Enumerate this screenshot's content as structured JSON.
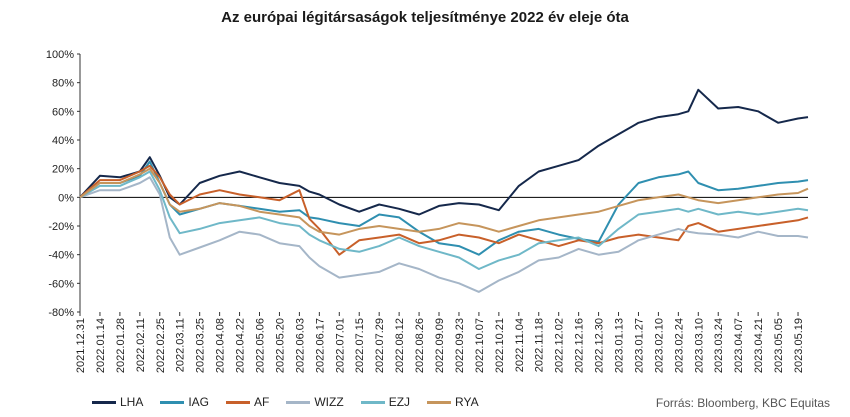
{
  "chart_data": {
    "type": "line",
    "title": "Az európai légitársaságok teljesítménye  2022 év eleje óta",
    "source": "Forrás: Bloomberg,  KBC Equitas",
    "ylim": [
      -80,
      100
    ],
    "yticks": [
      -80,
      -60,
      -40,
      -20,
      0,
      20,
      40,
      60,
      80,
      100
    ],
    "ytick_labels": [
      "-80%",
      "-60%",
      "-40%",
      "-20%",
      "0%",
      "20%",
      "40%",
      "60%",
      "80%",
      "100%"
    ],
    "x_tick_labels": [
      "2021.12.31",
      "2022.01.14",
      "2022.01.28",
      "2022.02.11",
      "2022.02.25",
      "2022.03.11",
      "2022.03.25",
      "2022.04.08",
      "2022.04.22",
      "2022.05.06",
      "2022.05.20",
      "2022.06.03",
      "2022.06.17",
      "2022.07.01",
      "2022.07.15",
      "2022.07.29",
      "2022.08.12",
      "2022.08.26",
      "2022.09.09",
      "2022.09.23",
      "2022.10.07",
      "2022.10.21",
      "2022.11.04",
      "2022.11.18",
      "2022.12.02",
      "2022.12.16",
      "2022.12.30",
      "2023.01.13",
      "2023.01.27",
      "2023.02.10",
      "2023.02.24",
      "2023.03.10",
      "2023.03.24",
      "2023.04.07",
      "2023.04.21",
      "2023.05.05",
      "2023.05.19"
    ],
    "x_tick_period_days": 14,
    "x": [
      "2021.12.31",
      "2022.01.14",
      "2022.01.28",
      "2022.02.11",
      "2022.02.18",
      "2022.02.25",
      "2022.03.04",
      "2022.03.11",
      "2022.03.25",
      "2022.04.08",
      "2022.04.22",
      "2022.05.06",
      "2022.05.20",
      "2022.06.03",
      "2022.06.10",
      "2022.06.17",
      "2022.07.01",
      "2022.07.15",
      "2022.07.29",
      "2022.08.12",
      "2022.08.26",
      "2022.09.09",
      "2022.09.23",
      "2022.10.07",
      "2022.10.21",
      "2022.11.04",
      "2022.11.18",
      "2022.12.02",
      "2022.12.16",
      "2022.12.30",
      "2023.01.13",
      "2023.01.27",
      "2023.02.10",
      "2023.02.24",
      "2023.03.03",
      "2023.03.10",
      "2023.03.24",
      "2023.04.07",
      "2023.04.21",
      "2023.05.05",
      "2023.05.19",
      "2023.05.26"
    ],
    "series": [
      {
        "name": "LHA",
        "color": "#15284b",
        "values": [
          0,
          15,
          14,
          18,
          28,
          15,
          0,
          -5,
          10,
          15,
          18,
          14,
          10,
          8,
          4,
          2,
          -5,
          -10,
          -5,
          -8,
          -12,
          -6,
          -4,
          -5,
          -9,
          8,
          18,
          22,
          26,
          36,
          44,
          52,
          56,
          58,
          60,
          75,
          62,
          63,
          60,
          52,
          55,
          56
        ]
      },
      {
        "name": "IAG",
        "color": "#2f8fb0",
        "values": [
          0,
          10,
          10,
          15,
          25,
          10,
          -5,
          -12,
          -8,
          -4,
          -6,
          -8,
          -10,
          -9,
          -14,
          -15,
          -18,
          -20,
          -12,
          -14,
          -24,
          -32,
          -34,
          -40,
          -30,
          -24,
          -22,
          -26,
          -29,
          -31,
          -5,
          10,
          14,
          16,
          18,
          10,
          5,
          6,
          8,
          10,
          11,
          12
        ]
      },
      {
        "name": "AF",
        "color": "#c8602a",
        "values": [
          0,
          12,
          12,
          18,
          22,
          14,
          2,
          -5,
          2,
          5,
          2,
          0,
          -2,
          5,
          -15,
          -22,
          -40,
          -30,
          -28,
          -26,
          -32,
          -30,
          -26,
          -28,
          -32,
          -26,
          -30,
          -34,
          -30,
          -32,
          -28,
          -26,
          -28,
          -30,
          -20,
          -18,
          -24,
          -22,
          -20,
          -18,
          -16,
          -14
        ]
      },
      {
        "name": "WIZZ",
        "color": "#a5b6c8",
        "values": [
          0,
          5,
          5,
          10,
          14,
          2,
          -28,
          -40,
          -35,
          -30,
          -24,
          -26,
          -32,
          -34,
          -42,
          -48,
          -56,
          -54,
          -52,
          -46,
          -50,
          -56,
          -60,
          -66,
          -58,
          -52,
          -44,
          -42,
          -36,
          -40,
          -38,
          -30,
          -26,
          -22,
          -24,
          -25,
          -26,
          -28,
          -24,
          -27,
          -27,
          -28
        ]
      },
      {
        "name": "EZJ",
        "color": "#6fb8c8",
        "values": [
          0,
          8,
          8,
          14,
          18,
          5,
          -14,
          -25,
          -22,
          -18,
          -16,
          -14,
          -18,
          -20,
          -26,
          -30,
          -36,
          -38,
          -34,
          -28,
          -34,
          -38,
          -42,
          -50,
          -44,
          -40,
          -32,
          -30,
          -28,
          -34,
          -22,
          -12,
          -10,
          -8,
          -10,
          -8,
          -12,
          -10,
          -12,
          -10,
          -8,
          -9
        ]
      },
      {
        "name": "RYA",
        "color": "#c6955c",
        "values": [
          0,
          10,
          10,
          16,
          20,
          10,
          -5,
          -10,
          -8,
          -4,
          -6,
          -10,
          -12,
          -14,
          -20,
          -24,
          -26,
          -22,
          -20,
          -22,
          -24,
          -22,
          -18,
          -20,
          -24,
          -20,
          -16,
          -14,
          -12,
          -10,
          -6,
          -2,
          0,
          2,
          0,
          -2,
          -4,
          -2,
          0,
          2,
          3,
          6
        ]
      }
    ],
    "grid": false
  }
}
